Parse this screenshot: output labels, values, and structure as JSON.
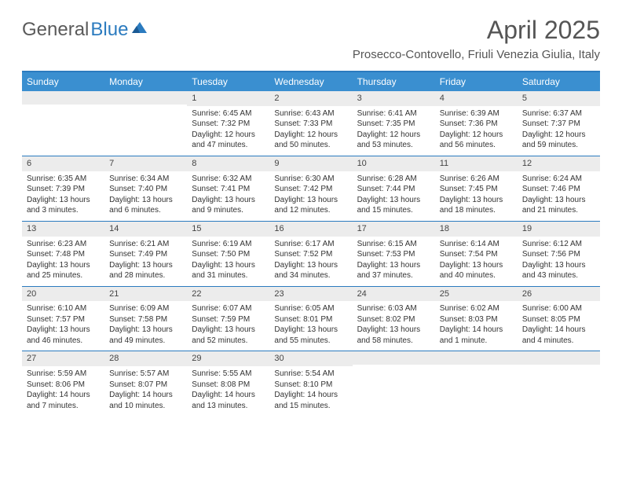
{
  "logo": {
    "text_gray": "General",
    "text_blue": "Blue"
  },
  "title": "April 2025",
  "location": "Prosecco-Contovello, Friuli Venezia Giulia, Italy",
  "colors": {
    "accent": "#2b7bbf",
    "header_bar": "#3a8fd0",
    "day_header_bg": "#ececec",
    "text": "#333333",
    "title_text": "#555555"
  },
  "days_of_week": [
    "Sunday",
    "Monday",
    "Tuesday",
    "Wednesday",
    "Thursday",
    "Friday",
    "Saturday"
  ],
  "weeks": [
    [
      {
        "n": "",
        "lines": []
      },
      {
        "n": "",
        "lines": []
      },
      {
        "n": "1",
        "lines": [
          "Sunrise: 6:45 AM",
          "Sunset: 7:32 PM",
          "Daylight: 12 hours",
          "and 47 minutes."
        ]
      },
      {
        "n": "2",
        "lines": [
          "Sunrise: 6:43 AM",
          "Sunset: 7:33 PM",
          "Daylight: 12 hours",
          "and 50 minutes."
        ]
      },
      {
        "n": "3",
        "lines": [
          "Sunrise: 6:41 AM",
          "Sunset: 7:35 PM",
          "Daylight: 12 hours",
          "and 53 minutes."
        ]
      },
      {
        "n": "4",
        "lines": [
          "Sunrise: 6:39 AM",
          "Sunset: 7:36 PM",
          "Daylight: 12 hours",
          "and 56 minutes."
        ]
      },
      {
        "n": "5",
        "lines": [
          "Sunrise: 6:37 AM",
          "Sunset: 7:37 PM",
          "Daylight: 12 hours",
          "and 59 minutes."
        ]
      }
    ],
    [
      {
        "n": "6",
        "lines": [
          "Sunrise: 6:35 AM",
          "Sunset: 7:39 PM",
          "Daylight: 13 hours",
          "and 3 minutes."
        ]
      },
      {
        "n": "7",
        "lines": [
          "Sunrise: 6:34 AM",
          "Sunset: 7:40 PM",
          "Daylight: 13 hours",
          "and 6 minutes."
        ]
      },
      {
        "n": "8",
        "lines": [
          "Sunrise: 6:32 AM",
          "Sunset: 7:41 PM",
          "Daylight: 13 hours",
          "and 9 minutes."
        ]
      },
      {
        "n": "9",
        "lines": [
          "Sunrise: 6:30 AM",
          "Sunset: 7:42 PM",
          "Daylight: 13 hours",
          "and 12 minutes."
        ]
      },
      {
        "n": "10",
        "lines": [
          "Sunrise: 6:28 AM",
          "Sunset: 7:44 PM",
          "Daylight: 13 hours",
          "and 15 minutes."
        ]
      },
      {
        "n": "11",
        "lines": [
          "Sunrise: 6:26 AM",
          "Sunset: 7:45 PM",
          "Daylight: 13 hours",
          "and 18 minutes."
        ]
      },
      {
        "n": "12",
        "lines": [
          "Sunrise: 6:24 AM",
          "Sunset: 7:46 PM",
          "Daylight: 13 hours",
          "and 21 minutes."
        ]
      }
    ],
    [
      {
        "n": "13",
        "lines": [
          "Sunrise: 6:23 AM",
          "Sunset: 7:48 PM",
          "Daylight: 13 hours",
          "and 25 minutes."
        ]
      },
      {
        "n": "14",
        "lines": [
          "Sunrise: 6:21 AM",
          "Sunset: 7:49 PM",
          "Daylight: 13 hours",
          "and 28 minutes."
        ]
      },
      {
        "n": "15",
        "lines": [
          "Sunrise: 6:19 AM",
          "Sunset: 7:50 PM",
          "Daylight: 13 hours",
          "and 31 minutes."
        ]
      },
      {
        "n": "16",
        "lines": [
          "Sunrise: 6:17 AM",
          "Sunset: 7:52 PM",
          "Daylight: 13 hours",
          "and 34 minutes."
        ]
      },
      {
        "n": "17",
        "lines": [
          "Sunrise: 6:15 AM",
          "Sunset: 7:53 PM",
          "Daylight: 13 hours",
          "and 37 minutes."
        ]
      },
      {
        "n": "18",
        "lines": [
          "Sunrise: 6:14 AM",
          "Sunset: 7:54 PM",
          "Daylight: 13 hours",
          "and 40 minutes."
        ]
      },
      {
        "n": "19",
        "lines": [
          "Sunrise: 6:12 AM",
          "Sunset: 7:56 PM",
          "Daylight: 13 hours",
          "and 43 minutes."
        ]
      }
    ],
    [
      {
        "n": "20",
        "lines": [
          "Sunrise: 6:10 AM",
          "Sunset: 7:57 PM",
          "Daylight: 13 hours",
          "and 46 minutes."
        ]
      },
      {
        "n": "21",
        "lines": [
          "Sunrise: 6:09 AM",
          "Sunset: 7:58 PM",
          "Daylight: 13 hours",
          "and 49 minutes."
        ]
      },
      {
        "n": "22",
        "lines": [
          "Sunrise: 6:07 AM",
          "Sunset: 7:59 PM",
          "Daylight: 13 hours",
          "and 52 minutes."
        ]
      },
      {
        "n": "23",
        "lines": [
          "Sunrise: 6:05 AM",
          "Sunset: 8:01 PM",
          "Daylight: 13 hours",
          "and 55 minutes."
        ]
      },
      {
        "n": "24",
        "lines": [
          "Sunrise: 6:03 AM",
          "Sunset: 8:02 PM",
          "Daylight: 13 hours",
          "and 58 minutes."
        ]
      },
      {
        "n": "25",
        "lines": [
          "Sunrise: 6:02 AM",
          "Sunset: 8:03 PM",
          "Daylight: 14 hours",
          "and 1 minute."
        ]
      },
      {
        "n": "26",
        "lines": [
          "Sunrise: 6:00 AM",
          "Sunset: 8:05 PM",
          "Daylight: 14 hours",
          "and 4 minutes."
        ]
      }
    ],
    [
      {
        "n": "27",
        "lines": [
          "Sunrise: 5:59 AM",
          "Sunset: 8:06 PM",
          "Daylight: 14 hours",
          "and 7 minutes."
        ]
      },
      {
        "n": "28",
        "lines": [
          "Sunrise: 5:57 AM",
          "Sunset: 8:07 PM",
          "Daylight: 14 hours",
          "and 10 minutes."
        ]
      },
      {
        "n": "29",
        "lines": [
          "Sunrise: 5:55 AM",
          "Sunset: 8:08 PM",
          "Daylight: 14 hours",
          "and 13 minutes."
        ]
      },
      {
        "n": "30",
        "lines": [
          "Sunrise: 5:54 AM",
          "Sunset: 8:10 PM",
          "Daylight: 14 hours",
          "and 15 minutes."
        ]
      },
      {
        "n": "",
        "lines": []
      },
      {
        "n": "",
        "lines": []
      },
      {
        "n": "",
        "lines": []
      }
    ]
  ]
}
